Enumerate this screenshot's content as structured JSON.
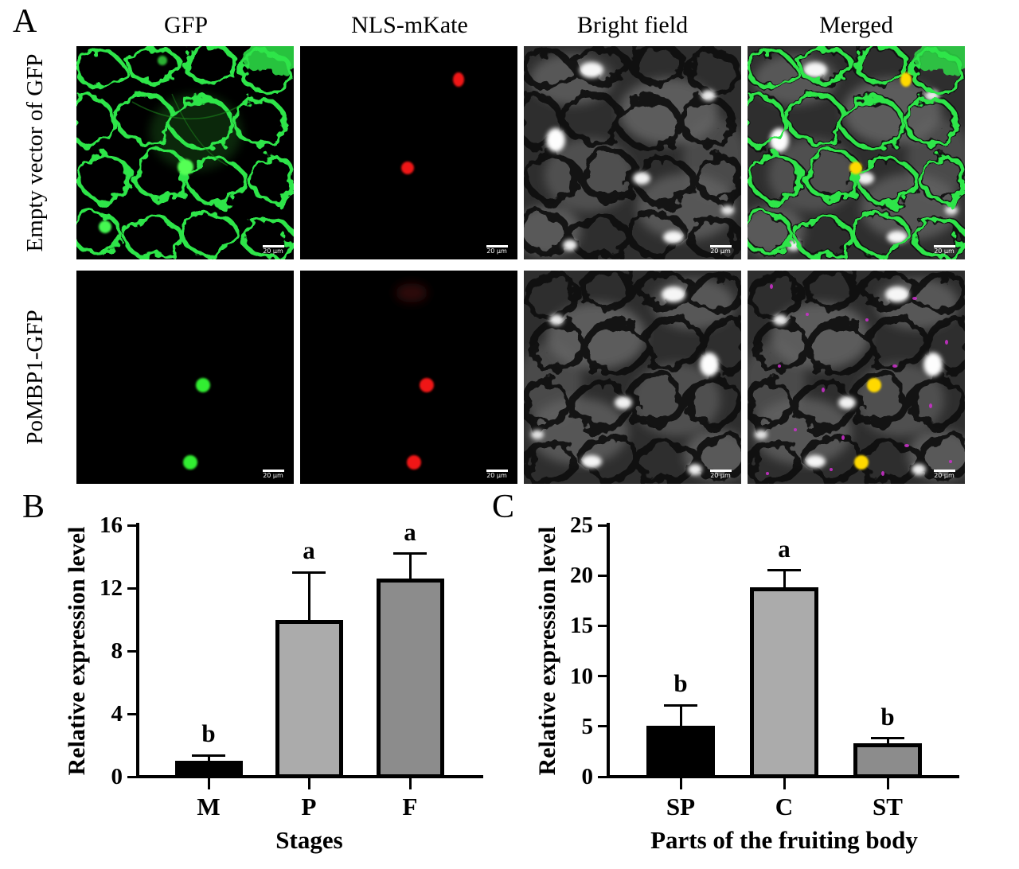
{
  "figure": {
    "panel_a": {
      "label": "A",
      "col_headers": [
        "GFP",
        "NLS-mKate",
        "Bright field",
        "Merged"
      ],
      "row_labels": [
        "Empty vector of GFP",
        "PoMBP1-GFP"
      ],
      "scale_bar": "20 μm"
    },
    "panel_b": {
      "label": "B"
    },
    "panel_c": {
      "label": "C"
    }
  },
  "chart_data": [
    {
      "id": "B",
      "type": "bar",
      "categories": [
        "M",
        "P",
        "F"
      ],
      "values": [
        1.0,
        10.0,
        12.6
      ],
      "error_top": [
        1.35,
        13.0,
        14.2
      ],
      "sig_letters": [
        "b",
        "a",
        "a"
      ],
      "bar_colors": [
        "#000000",
        "#ABABAB",
        "#8C8C8C"
      ],
      "xlabel": "Stages",
      "ylabel": "Relative expression level",
      "ylim": [
        0,
        16
      ],
      "yticks": [
        0,
        4,
        8,
        12,
        16
      ],
      "grid": false,
      "legend": "none"
    },
    {
      "id": "C",
      "type": "bar",
      "categories": [
        "SP",
        "C",
        "ST"
      ],
      "values": [
        5.1,
        18.85,
        3.3
      ],
      "error_top": [
        7.1,
        20.5,
        3.8
      ],
      "sig_letters": [
        "b",
        "a",
        "b"
      ],
      "bar_colors": [
        "#000000",
        "#ABABAB",
        "#8C8C8C"
      ],
      "xlabel": "Parts of the fruiting body",
      "ylabel": "Relative expression level",
      "ylim": [
        0,
        25
      ],
      "yticks": [
        0,
        5,
        10,
        15,
        20,
        25
      ],
      "grid": false,
      "legend": "none"
    }
  ]
}
